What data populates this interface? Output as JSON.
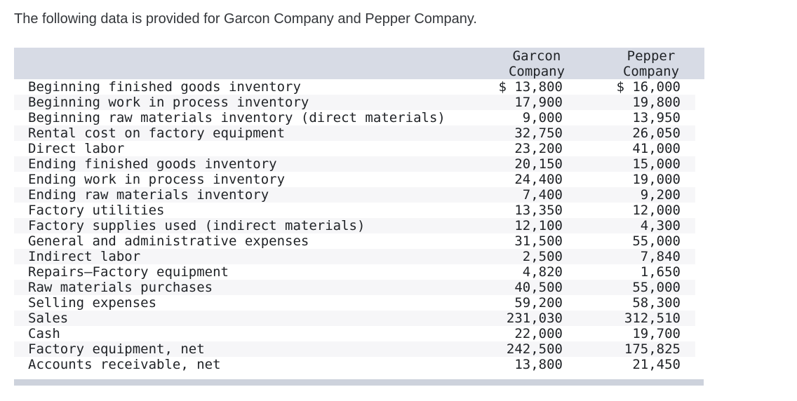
{
  "page": {
    "title": "The following data is provided for Garcon Company and Pepper Company."
  },
  "table": {
    "header": {
      "garcon": [
        "Garcon",
        "Company"
      ],
      "pepper": [
        "Pepper",
        "Company"
      ]
    },
    "rows": [
      {
        "label": "Beginning finished goods inventory",
        "garcon": "$ 13,800",
        "pepper": "$ 16,000"
      },
      {
        "label": "Beginning work in process inventory",
        "garcon": "17,900",
        "pepper": "19,800"
      },
      {
        "label": "Beginning raw materials inventory (direct materials)",
        "garcon": "9,000",
        "pepper": "13,950"
      },
      {
        "label": "Rental cost on factory equipment",
        "garcon": "32,750",
        "pepper": "26,050"
      },
      {
        "label": "Direct labor",
        "garcon": "23,200",
        "pepper": "41,000"
      },
      {
        "label": "Ending finished goods inventory",
        "garcon": "20,150",
        "pepper": "15,000"
      },
      {
        "label": "Ending work in process inventory",
        "garcon": "24,400",
        "pepper": "19,000"
      },
      {
        "label": "Ending raw materials inventory",
        "garcon": "7,400",
        "pepper": "9,200"
      },
      {
        "label": "Factory utilities",
        "garcon": "13,350",
        "pepper": "12,000"
      },
      {
        "label": "Factory supplies used (indirect materials)",
        "garcon": "12,100",
        "pepper": "4,300"
      },
      {
        "label": "General and administrative expenses",
        "garcon": "31,500",
        "pepper": "55,000"
      },
      {
        "label": "Indirect labor",
        "garcon": "2,500",
        "pepper": "7,840"
      },
      {
        "label": "Repairs—Factory equipment",
        "garcon": "4,820",
        "pepper": "1,650"
      },
      {
        "label": "Raw materials purchases",
        "garcon": "40,500",
        "pepper": "55,000"
      },
      {
        "label": "Selling expenses",
        "garcon": "59,200",
        "pepper": "58,300"
      },
      {
        "label": "Sales",
        "garcon": "231,030",
        "pepper": "312,510"
      },
      {
        "label": "Cash",
        "garcon": "22,000",
        "pepper": "19,700"
      },
      {
        "label": "Factory equipment, net",
        "garcon": "242,500",
        "pepper": "175,825"
      },
      {
        "label": "Accounts receivable, net",
        "garcon": "13,800",
        "pepper": "21,450"
      }
    ]
  },
  "colors": {
    "header_bg": "#d7dbe5",
    "stripe_bg": "#f6f6f8",
    "bottom_bar": "#cdd2dc",
    "text": "#1f2226"
  }
}
